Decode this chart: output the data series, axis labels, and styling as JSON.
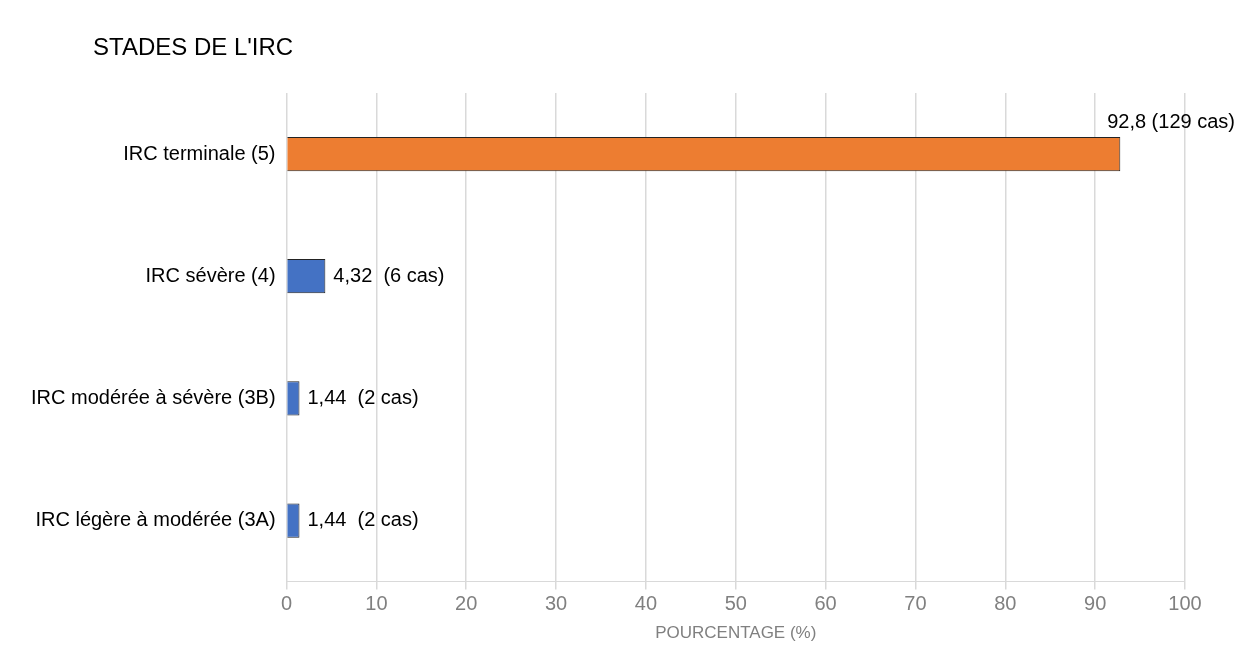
{
  "chart_data": {
    "type": "bar",
    "orientation": "horizontal",
    "ylabel": "STADES DE L'IRC",
    "xlabel": "POURCENTAGE (%)",
    "categories": [
      "IRC terminale (5)",
      "IRC sévère (4)",
      "IRC modérée à sévère (3B)",
      "IRC légère à modérée (3A)"
    ],
    "values": [
      92.8,
      4.32,
      1.44,
      1.44
    ],
    "colors": [
      "#ed7d31",
      "#4472c4",
      "#4472c4",
      "#4472c4"
    ],
    "value_labels": [
      "92,8 (129 cas)",
      "4,32  (6 cas)",
      "1,44  (2 cas)",
      "1,44  (2 cas)"
    ],
    "xlim": [
      0,
      100
    ],
    "xticks": [
      0,
      10,
      20,
      30,
      40,
      50,
      60,
      70,
      80,
      90,
      100
    ],
    "grid": "x"
  }
}
